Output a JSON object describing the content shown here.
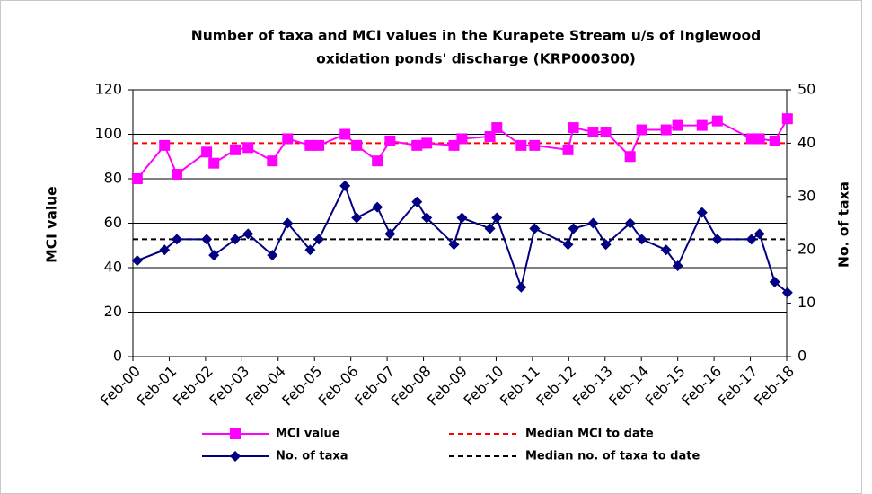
{
  "chart_data": {
    "type": "line",
    "title": [
      "Number of taxa and MCI values in the Kurapete Stream u/s of Inglewood",
      "oxidation ponds' discharge  (KRP000300)"
    ],
    "ylabel": "MCI value",
    "y2label": "No. of taxa",
    "x": [
      0.12,
      0.87,
      1.21,
      2.03,
      2.23,
      2.82,
      3.17,
      3.84,
      4.26,
      4.88,
      5.12,
      5.84,
      6.16,
      6.73,
      7.08,
      7.82,
      8.09,
      8.84,
      9.06,
      9.83,
      10.02,
      10.69,
      11.06,
      11.98,
      12.13,
      12.67,
      13.02,
      13.69,
      14.01,
      14.68,
      15.0,
      15.67,
      16.09,
      17.03,
      17.25,
      17.67,
      18.02
    ],
    "series": [
      {
        "name": "MCI value",
        "color": "#ff00ff",
        "marker": "square",
        "axis": "y",
        "values": [
          80,
          95,
          82,
          92,
          87,
          93,
          94,
          88,
          98,
          95,
          95,
          100,
          95,
          88,
          97,
          95,
          96,
          95,
          98,
          99,
          103,
          95,
          95,
          93,
          103,
          101,
          101,
          90,
          102,
          102,
          104,
          104,
          106,
          98,
          98,
          97,
          107
        ]
      },
      {
        "name": "No. of taxa",
        "color": "#000080",
        "marker": "diamond",
        "axis": "y2",
        "values": [
          18,
          20,
          22,
          22,
          19,
          22,
          23,
          19,
          25,
          20,
          22,
          32,
          26,
          28,
          23,
          29,
          26,
          21,
          26,
          24,
          26,
          13,
          24,
          21,
          24,
          25,
          21,
          25,
          22,
          20,
          17,
          27,
          22,
          22,
          23,
          14,
          12
        ]
      }
    ],
    "reference_lines": [
      {
        "name": "Median MCI to date",
        "color": "#ff0000",
        "value": 96,
        "axis": "y"
      },
      {
        "name": "Median no. of taxa to date",
        "color": "#000000",
        "value": 22,
        "axis": "y2"
      }
    ],
    "xlim": [
      0,
      18
    ],
    "xticks": [
      {
        "value": 0,
        "label": "Feb-00"
      },
      {
        "value": 1,
        "label": "Feb-01"
      },
      {
        "value": 2,
        "label": "Feb-02"
      },
      {
        "value": 3,
        "label": "Feb-03"
      },
      {
        "value": 4,
        "label": "Feb-04"
      },
      {
        "value": 5,
        "label": "Feb-05"
      },
      {
        "value": 6,
        "label": "Feb-06"
      },
      {
        "value": 7,
        "label": "Feb-07"
      },
      {
        "value": 8,
        "label": "Feb-08"
      },
      {
        "value": 9,
        "label": "Feb-09"
      },
      {
        "value": 10,
        "label": "Feb-10"
      },
      {
        "value": 11,
        "label": "Feb-11"
      },
      {
        "value": 12,
        "label": "Feb-12"
      },
      {
        "value": 13,
        "label": "Feb-13"
      },
      {
        "value": 14,
        "label": "Feb-14"
      },
      {
        "value": 15,
        "label": "Feb-15"
      },
      {
        "value": 16,
        "label": "Feb-16"
      },
      {
        "value": 17,
        "label": "Feb-17"
      },
      {
        "value": 18,
        "label": "Feb-18"
      }
    ],
    "ylim": [
      0,
      120
    ],
    "yticks": [
      0,
      20,
      40,
      60,
      80,
      100,
      120
    ],
    "y2lim": [
      0,
      50
    ],
    "y2ticks": [
      0,
      10,
      20,
      30,
      40,
      50
    ],
    "grid": true
  }
}
